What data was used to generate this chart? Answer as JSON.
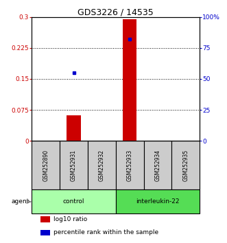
{
  "title": "GDS3226 / 14535",
  "samples": [
    "GSM252890",
    "GSM252931",
    "GSM252932",
    "GSM252933",
    "GSM252934",
    "GSM252935"
  ],
  "log10_ratio": [
    0.0,
    0.062,
    0.0,
    0.295,
    0.0,
    0.0
  ],
  "percentile_rank": [
    null,
    55.0,
    null,
    82.0,
    null,
    null
  ],
  "groups": [
    {
      "label": "control",
      "indices": [
        0,
        1,
        2
      ],
      "color": "#aaffaa"
    },
    {
      "label": "interleukin-22",
      "indices": [
        3,
        4,
        5
      ],
      "color": "#55dd55"
    }
  ],
  "ylim_left": [
    0,
    0.3
  ],
  "ylim_right": [
    0,
    100
  ],
  "yticks_left": [
    0,
    0.075,
    0.15,
    0.225,
    0.3
  ],
  "ytick_labels_left": [
    "0",
    "0.075",
    "0.15",
    "0.225",
    "0.3"
  ],
  "yticks_right": [
    0,
    25,
    50,
    75,
    100
  ],
  "ytick_labels_right": [
    "0",
    "25",
    "50",
    "75",
    "100%"
  ],
  "bar_color": "#cc0000",
  "point_color": "#0000cc",
  "sample_box_color": "#cccccc",
  "left_axis_color": "#cc0000",
  "right_axis_color": "#0000cc",
  "bar_width": 0.5,
  "figsize": [
    3.31,
    3.54
  ],
  "dpi": 100
}
